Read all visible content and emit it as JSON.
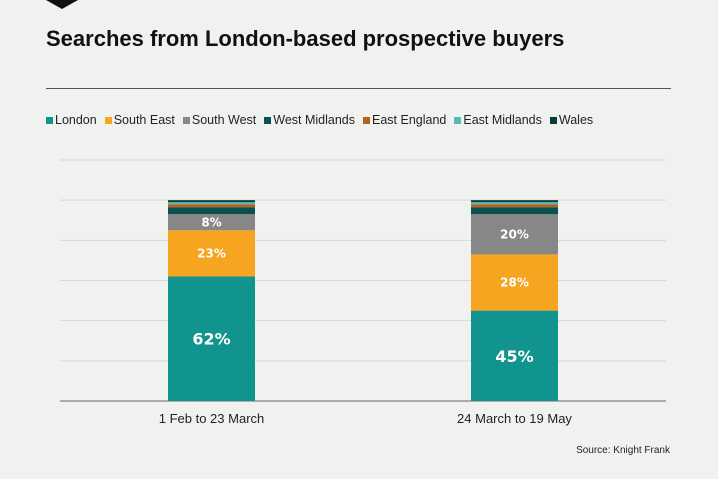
{
  "header": {
    "title": "Searches from London-based prospective buyers",
    "source": "Source: Knight Frank"
  },
  "chart_data": {
    "type": "bar",
    "stacked": true,
    "title": "Searches from London-based prospective buyers",
    "categories": [
      "1 Feb to 23 March",
      "24 March to 19 May"
    ],
    "ylim": [
      0,
      120
    ],
    "grid": true,
    "legend_position": "top-left",
    "series": [
      {
        "name": "London",
        "color": "#12948e",
        "values": [
          62,
          45
        ],
        "labels": [
          "62%",
          "45%"
        ]
      },
      {
        "name": "South East",
        "color": "#f7a521",
        "values": [
          23,
          28
        ],
        "labels": [
          "23%",
          "28%"
        ]
      },
      {
        "name": "South West",
        "color": "#878787",
        "values": [
          8,
          20
        ],
        "labels": [
          "8%",
          "20%"
        ]
      },
      {
        "name": "West Midlands",
        "color": "#0b5052",
        "values": [
          3.5,
          3.5
        ],
        "labels": [
          "",
          ""
        ]
      },
      {
        "name": "East England",
        "color": "#b5621c",
        "values": [
          1.5,
          1.5
        ],
        "labels": [
          "",
          ""
        ]
      },
      {
        "name": "East Midlands",
        "color": "#5cbab6",
        "values": [
          1,
          1
        ],
        "labels": [
          "",
          ""
        ]
      },
      {
        "name": "Wales",
        "color": "#0a3c3c",
        "values": [
          1,
          1
        ],
        "labels": [
          "",
          ""
        ]
      }
    ]
  }
}
